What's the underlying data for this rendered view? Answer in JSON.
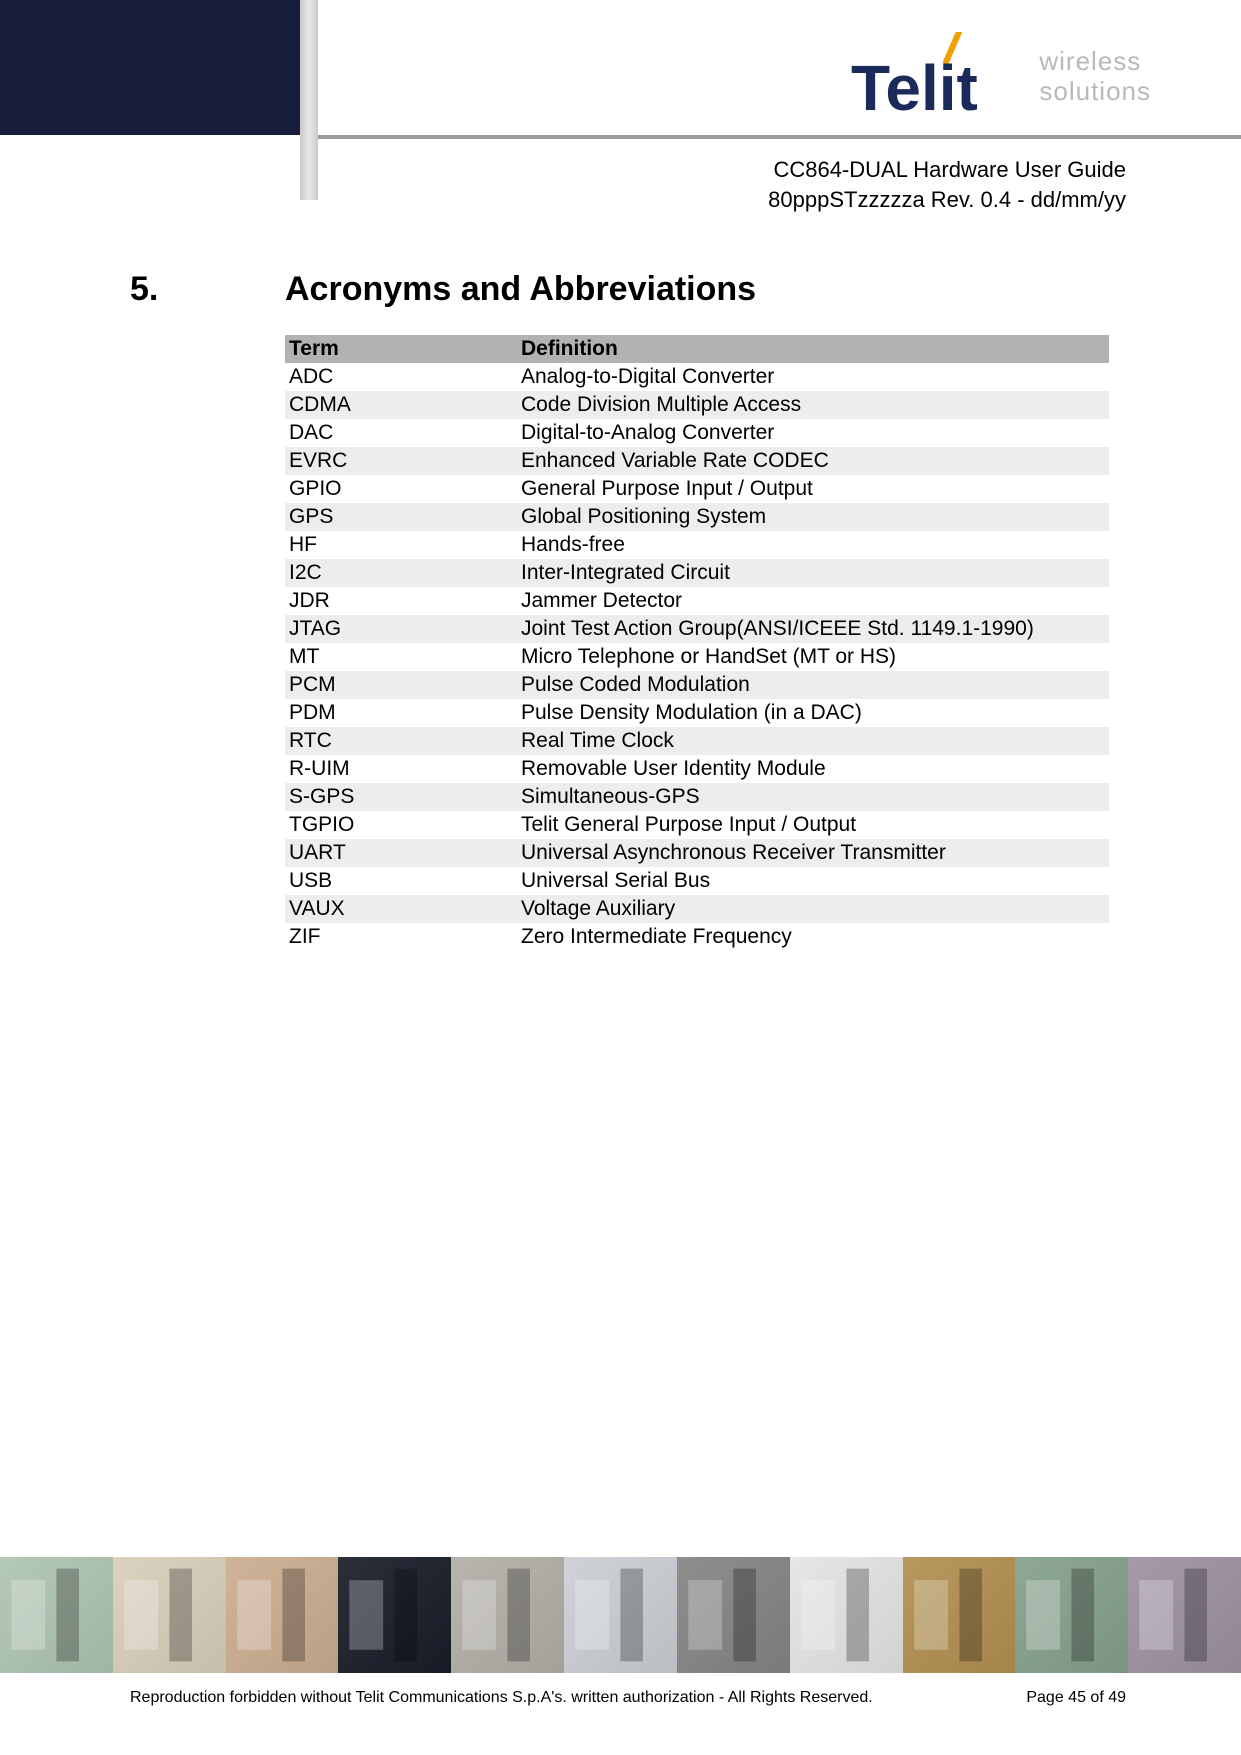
{
  "header": {
    "tagline_line1": "wireless",
    "tagline_line2": "solutions",
    "doc_title": "CC864-DUAL Hardware User Guide",
    "doc_rev": "80pppSTzzzzza Rev. 0.4 - dd/mm/yy",
    "logo_colors": {
      "text": "#1a2a5a",
      "accent": "#f0a000"
    }
  },
  "section": {
    "number": "5.",
    "title": "Acronyms and Abbreviations"
  },
  "table": {
    "columns": [
      "Term",
      "Definition"
    ],
    "rows": [
      [
        "ADC",
        "Analog-to-Digital Converter"
      ],
      [
        "CDMA",
        "Code Division Multiple Access"
      ],
      [
        "DAC",
        "Digital-to-Analog Converter"
      ],
      [
        "EVRC",
        "Enhanced Variable Rate CODEC"
      ],
      [
        "GPIO",
        "General Purpose Input / Output"
      ],
      [
        "GPS",
        "Global Positioning System"
      ],
      [
        "HF",
        "Hands-free"
      ],
      [
        "I2C",
        "Inter-Integrated Circuit"
      ],
      [
        "JDR",
        "Jammer Detector"
      ],
      [
        "JTAG",
        "Joint Test Action Group(ANSI/ICEEE Std. 1149.1-1990)"
      ],
      [
        "MT",
        "Micro Telephone or HandSet (MT or HS)"
      ],
      [
        "PCM",
        "Pulse Coded Modulation"
      ],
      [
        "PDM",
        "Pulse Density Modulation (in a DAC)"
      ],
      [
        "RTC",
        "Real Time Clock"
      ],
      [
        "R-UIM",
        "Removable User Identity Module"
      ],
      [
        "S-GPS",
        "Simultaneous-GPS"
      ],
      [
        "TGPIO",
        "Telit General Purpose Input / Output"
      ],
      [
        "UART",
        "Universal Asynchronous Receiver Transmitter"
      ],
      [
        "USB",
        "Universal Serial Bus"
      ],
      [
        "VAUX",
        "Voltage Auxiliary"
      ],
      [
        "ZIF",
        "Zero Intermediate Frequency"
      ]
    ],
    "header_bg": "#b2b2b2",
    "row_odd_bg": "#ffffff",
    "row_even_bg": "#ededed"
  },
  "footer": {
    "copyright": "Reproduction forbidden without Telit Communications S.p.A's. written authorization - All Rights Reserved.",
    "page": "Page 45 of 49",
    "strip_colors": [
      "#b5c9b8",
      "#dcd2c0",
      "#d0b49a",
      "#2a2f3a",
      "#b8b5ae",
      "#cfd3d8",
      "#8e8e8e",
      "#e6e6e8",
      "#b8985f",
      "#8fa896",
      "#a59aa8"
    ]
  }
}
